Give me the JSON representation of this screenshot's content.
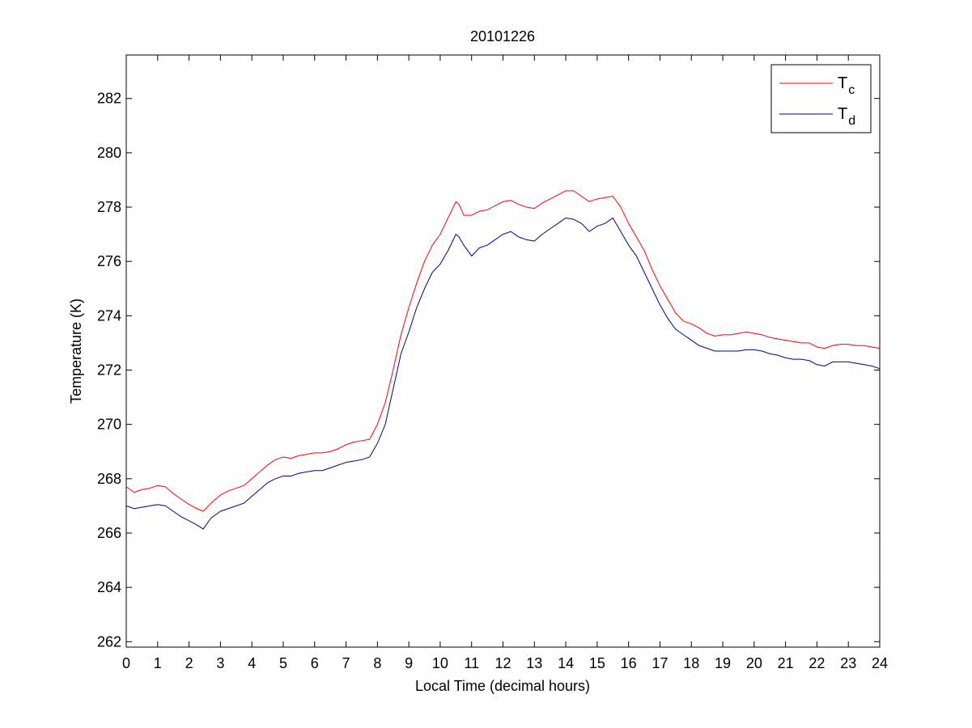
{
  "chart_data": {
    "type": "line",
    "title": "20101226",
    "xlabel": "Local Time (decimal hours)",
    "ylabel": "Temperature (K)",
    "xlim": [
      0,
      24
    ],
    "ylim": [
      261.8,
      283.6
    ],
    "xticks": [
      0,
      1,
      2,
      3,
      4,
      5,
      6,
      7,
      8,
      9,
      10,
      11,
      12,
      13,
      14,
      15,
      16,
      17,
      18,
      19,
      20,
      21,
      22,
      23,
      24
    ],
    "yticks": [
      262,
      264,
      266,
      268,
      270,
      272,
      274,
      276,
      278,
      280,
      282
    ],
    "grid": false,
    "legend_position": "top-right",
    "series": [
      {
        "name": "T",
        "subscript": "c",
        "color": "#ff0000",
        "x": [
          0,
          0.25,
          0.5,
          0.75,
          1.0,
          1.25,
          1.5,
          1.75,
          2.0,
          2.25,
          2.45,
          2.7,
          3.0,
          3.25,
          3.5,
          3.75,
          4.0,
          4.25,
          4.5,
          4.75,
          5.0,
          5.25,
          5.5,
          5.75,
          6.0,
          6.25,
          6.5,
          6.75,
          7.0,
          7.25,
          7.5,
          7.75,
          8.0,
          8.25,
          8.5,
          8.75,
          9.0,
          9.25,
          9.5,
          9.75,
          10.0,
          10.25,
          10.5,
          10.6,
          10.75,
          11.0,
          11.25,
          11.5,
          11.75,
          12.0,
          12.25,
          12.5,
          12.75,
          13.0,
          13.25,
          13.5,
          13.75,
          14.0,
          14.25,
          14.5,
          14.75,
          15.0,
          15.25,
          15.5,
          15.75,
          16.0,
          16.25,
          16.5,
          16.75,
          17.0,
          17.25,
          17.5,
          17.75,
          18.0,
          18.25,
          18.5,
          18.75,
          19.0,
          19.25,
          19.5,
          19.75,
          20.0,
          20.25,
          20.5,
          20.75,
          21.0,
          21.25,
          21.5,
          21.75,
          22.0,
          22.25,
          22.5,
          22.75,
          23.0,
          23.25,
          23.5,
          23.75,
          24.0
        ],
        "y": [
          267.7,
          267.5,
          267.6,
          267.65,
          267.75,
          267.7,
          267.45,
          267.25,
          267.05,
          266.9,
          266.8,
          267.1,
          267.4,
          267.55,
          267.65,
          267.75,
          268.0,
          268.25,
          268.5,
          268.7,
          268.8,
          268.75,
          268.85,
          268.9,
          268.95,
          268.95,
          269.0,
          269.1,
          269.25,
          269.35,
          269.4,
          269.45,
          270.0,
          270.8,
          272.0,
          273.3,
          274.3,
          275.2,
          276.0,
          276.6,
          277.0,
          277.6,
          278.2,
          278.1,
          277.7,
          277.7,
          277.85,
          277.9,
          278.05,
          278.2,
          278.25,
          278.1,
          278.0,
          277.95,
          278.15,
          278.3,
          278.45,
          278.6,
          278.6,
          278.4,
          278.2,
          278.3,
          278.35,
          278.4,
          278.0,
          277.4,
          276.9,
          276.4,
          275.7,
          275.1,
          274.6,
          274.1,
          273.8,
          273.7,
          273.55,
          273.35,
          273.25,
          273.3,
          273.3,
          273.35,
          273.4,
          273.35,
          273.3,
          273.2,
          273.15,
          273.1,
          273.05,
          273.0,
          273.0,
          272.85,
          272.8,
          272.9,
          272.95,
          272.95,
          272.9,
          272.9,
          272.85,
          272.8
        ]
      },
      {
        "name": "T",
        "subscript": "d",
        "color": "#00008b",
        "x": [
          0,
          0.25,
          0.5,
          0.75,
          1.0,
          1.25,
          1.5,
          1.75,
          2.0,
          2.25,
          2.45,
          2.7,
          3.0,
          3.25,
          3.5,
          3.75,
          4.0,
          4.25,
          4.5,
          4.75,
          5.0,
          5.25,
          5.5,
          5.75,
          6.0,
          6.25,
          6.5,
          6.75,
          7.0,
          7.25,
          7.5,
          7.75,
          8.0,
          8.25,
          8.5,
          8.75,
          9.0,
          9.25,
          9.5,
          9.75,
          10.0,
          10.25,
          10.5,
          10.6,
          10.75,
          11.0,
          11.25,
          11.5,
          11.75,
          12.0,
          12.25,
          12.5,
          12.75,
          13.0,
          13.25,
          13.5,
          13.75,
          14.0,
          14.25,
          14.5,
          14.75,
          15.0,
          15.25,
          15.5,
          15.75,
          16.0,
          16.25,
          16.5,
          16.75,
          17.0,
          17.25,
          17.5,
          17.75,
          18.0,
          18.25,
          18.5,
          18.75,
          19.0,
          19.25,
          19.5,
          19.75,
          20.0,
          20.25,
          20.5,
          20.75,
          21.0,
          21.25,
          21.5,
          21.75,
          22.0,
          22.25,
          22.5,
          22.75,
          23.0,
          23.25,
          23.5,
          23.75,
          24.0
        ],
        "y": [
          267.0,
          266.9,
          266.95,
          267.0,
          267.05,
          267.0,
          266.8,
          266.6,
          266.45,
          266.3,
          266.15,
          266.55,
          266.8,
          266.9,
          267.0,
          267.1,
          267.35,
          267.6,
          267.85,
          268.0,
          268.1,
          268.1,
          268.2,
          268.25,
          268.3,
          268.3,
          268.4,
          268.5,
          268.6,
          268.65,
          268.7,
          268.8,
          269.3,
          270.0,
          271.3,
          272.6,
          273.4,
          274.3,
          275.0,
          275.6,
          275.9,
          276.4,
          277.0,
          276.9,
          276.6,
          276.2,
          276.5,
          276.6,
          276.8,
          277.0,
          277.1,
          276.9,
          276.8,
          276.75,
          277.0,
          277.2,
          277.4,
          277.6,
          277.55,
          277.4,
          277.1,
          277.3,
          277.4,
          277.6,
          277.1,
          276.6,
          276.2,
          275.6,
          275.0,
          274.4,
          273.9,
          273.5,
          273.3,
          273.1,
          272.9,
          272.8,
          272.7,
          272.7,
          272.7,
          272.7,
          272.75,
          272.75,
          272.7,
          272.6,
          272.55,
          272.45,
          272.4,
          272.4,
          272.35,
          272.2,
          272.15,
          272.3,
          272.3,
          272.3,
          272.25,
          272.2,
          272.15,
          272.05
        ]
      }
    ]
  }
}
